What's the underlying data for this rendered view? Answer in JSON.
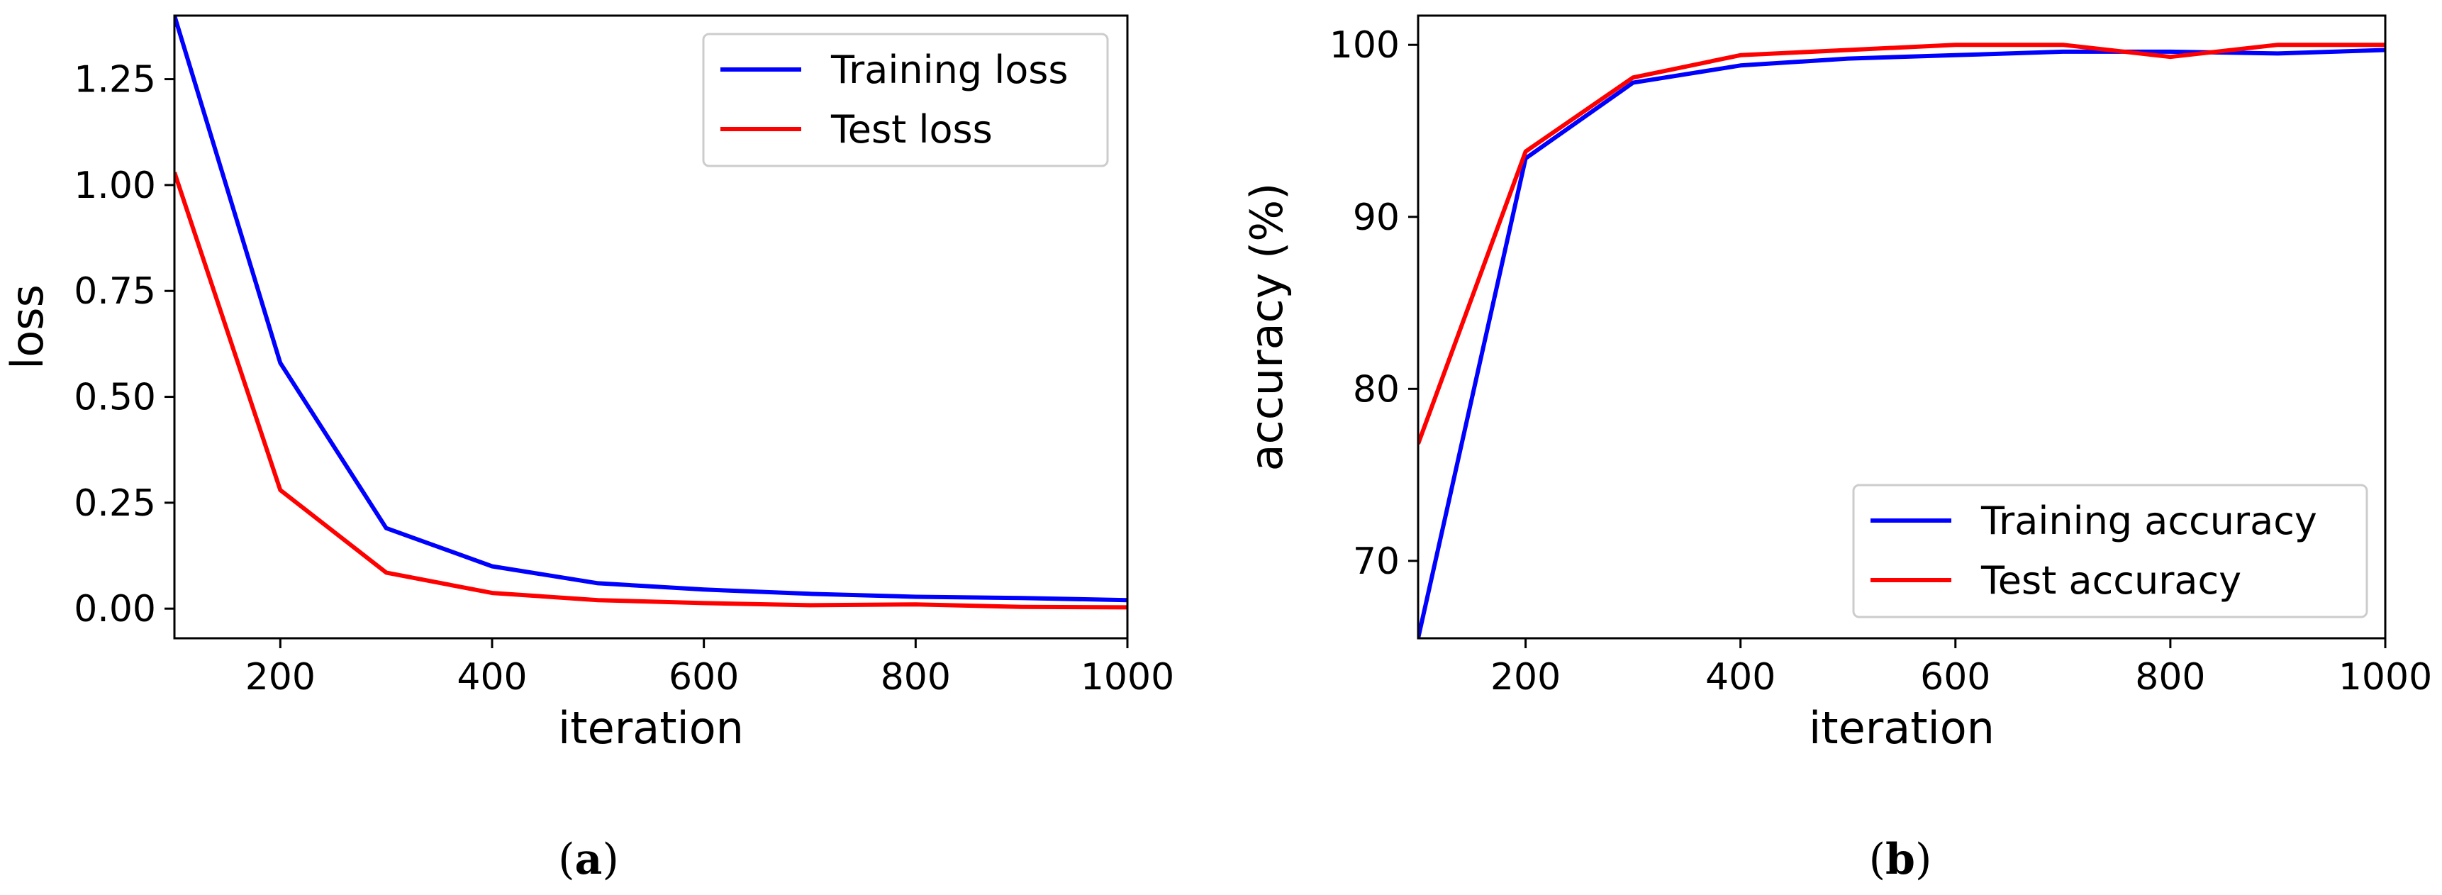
{
  "chart_data": [
    {
      "type": "line",
      "panel": "(a)",
      "caption_letter": "a",
      "xlabel": "iteration",
      "ylabel": "loss",
      "xlim": [
        100,
        1000
      ],
      "ylim": [
        -0.07,
        1.4
      ],
      "xticks": [
        200,
        400,
        600,
        800,
        1000
      ],
      "yticks": [
        "0.00",
        "0.25",
        "0.50",
        "0.75",
        "1.00",
        "1.25"
      ],
      "x": [
        100,
        200,
        300,
        400,
        500,
        600,
        700,
        800,
        900,
        1000
      ],
      "legend_position": "top-right",
      "series": [
        {
          "name": "Training loss",
          "color": "#0000ff",
          "values": [
            1.4,
            0.58,
            0.19,
            0.1,
            0.06,
            0.045,
            0.035,
            0.028,
            0.025,
            0.02
          ]
        },
        {
          "name": "Test loss",
          "color": "#ff0000",
          "values": [
            1.03,
            0.28,
            0.085,
            0.037,
            0.02,
            0.013,
            0.008,
            0.01,
            0.004,
            0.003
          ]
        }
      ]
    },
    {
      "type": "line",
      "panel": "(b)",
      "caption_letter": "b",
      "xlabel": "iteration",
      "ylabel": "accuracy (%)",
      "xlim": [
        100,
        1000
      ],
      "ylim": [
        65.5,
        101.7
      ],
      "xticks": [
        200,
        400,
        600,
        800,
        1000
      ],
      "yticks": [
        "70",
        "80",
        "90",
        "100"
      ],
      "x": [
        100,
        200,
        300,
        400,
        500,
        600,
        700,
        800,
        900,
        1000
      ],
      "legend_position": "bottom-right",
      "series": [
        {
          "name": "Training accuracy",
          "color": "#0000ff",
          "values": [
            65.5,
            93.4,
            97.8,
            98.8,
            99.2,
            99.4,
            99.6,
            99.6,
            99.5,
            99.7
          ]
        },
        {
          "name": "Test accuracy",
          "color": "#ff0000",
          "values": [
            76.8,
            93.8,
            98.1,
            99.4,
            99.7,
            100.0,
            100.0,
            99.3,
            100.0,
            100.0
          ]
        }
      ]
    }
  ]
}
